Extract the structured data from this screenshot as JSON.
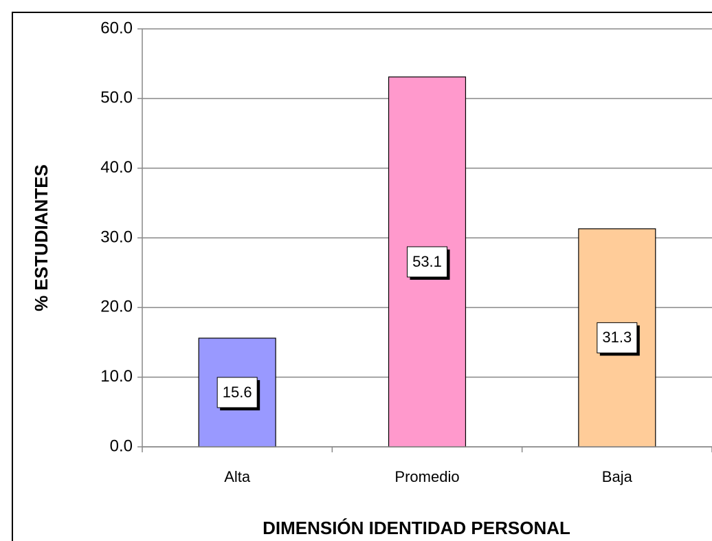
{
  "chart_data": {
    "type": "bar",
    "categories": [
      "Alta",
      "Promedio",
      "Baja"
    ],
    "values": [
      15.6,
      53.1,
      31.3
    ],
    "colors": [
      "#9999ff",
      "#ff99cc",
      "#ffcc99"
    ],
    "ylabel": "% ESTUDIANTES",
    "xlabel": "DIMENSIÓN IDENTIDAD PERSONAL",
    "ylim": [
      0,
      60
    ],
    "yticks": [
      {
        "value": 0,
        "label": "0.0"
      },
      {
        "value": 10,
        "label": "10.0"
      },
      {
        "value": 20,
        "label": "20.0"
      },
      {
        "value": 30,
        "label": "30.0"
      },
      {
        "value": 40,
        "label": "40.0"
      },
      {
        "value": 50,
        "label": "50.0"
      },
      {
        "value": 60,
        "label": "60.0"
      }
    ],
    "grid": true
  }
}
